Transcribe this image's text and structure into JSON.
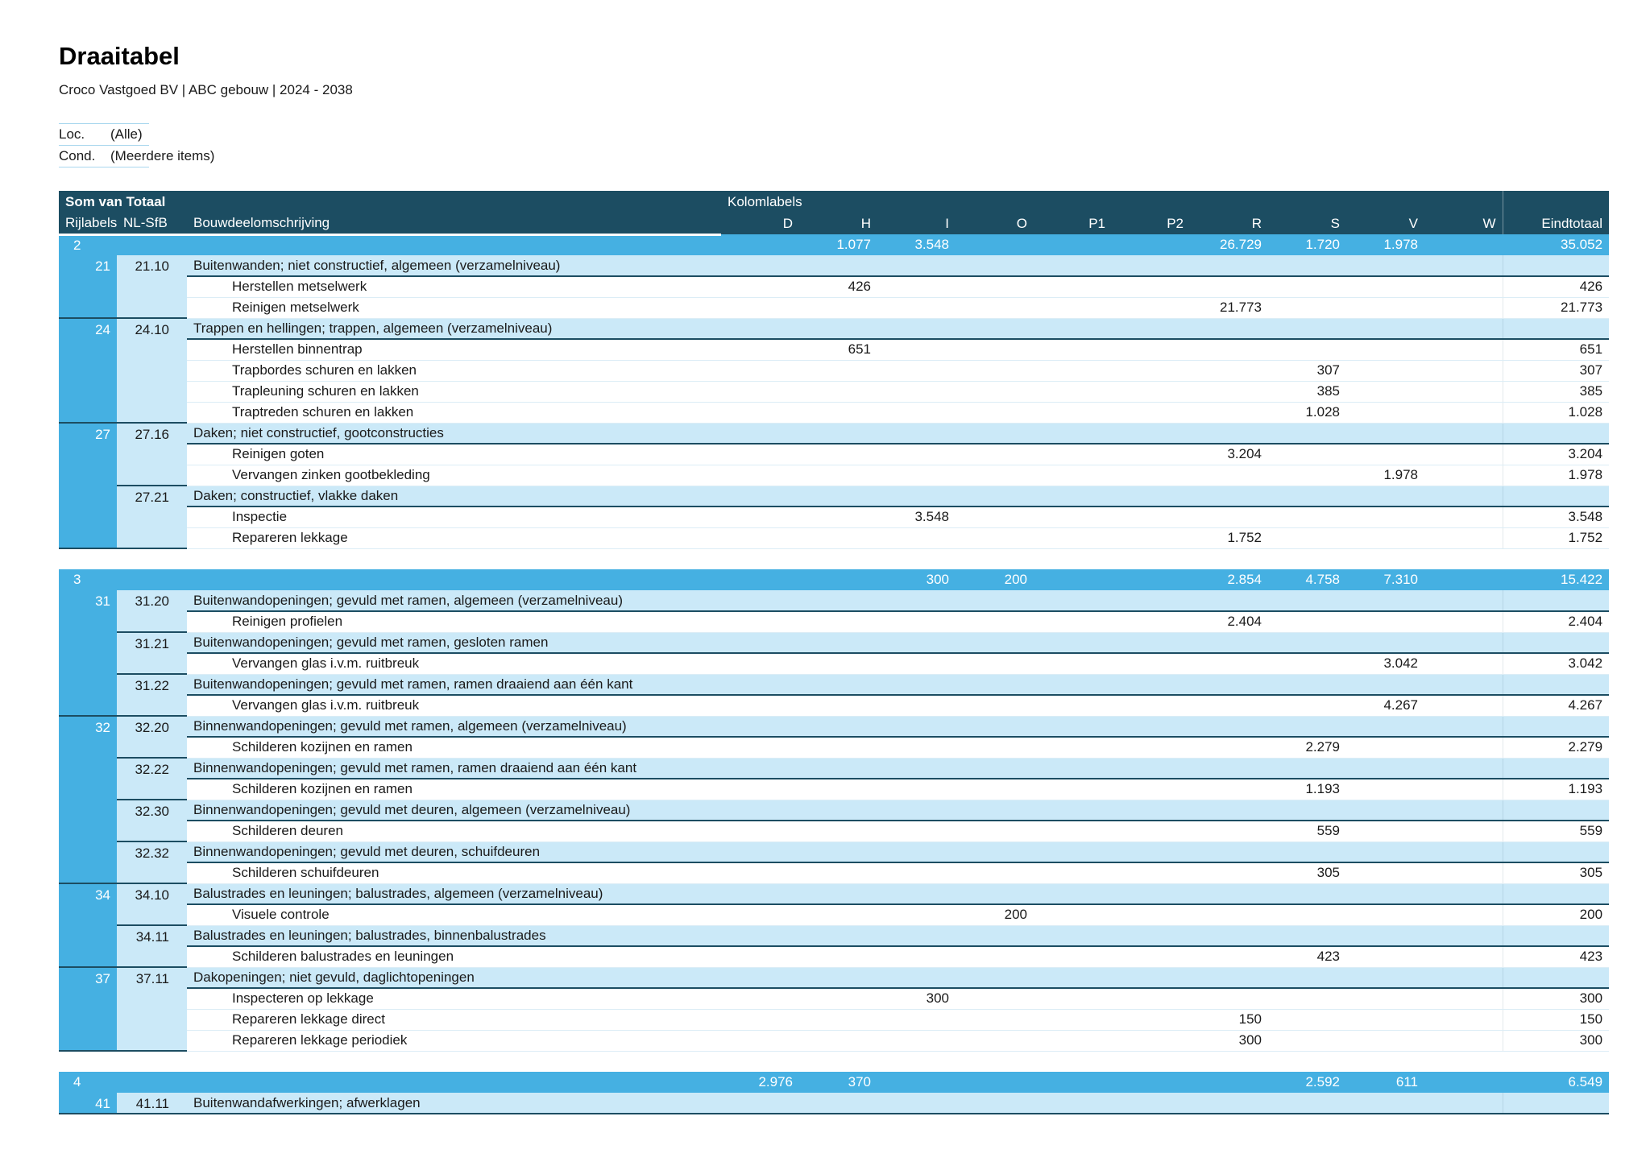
{
  "page": {
    "title": "Draaitabel",
    "subtitle": "Croco Vastgoed BV | ABC gebouw | 2024 - 2038"
  },
  "filters": [
    {
      "label": "Loc.",
      "value": "(Alle)"
    },
    {
      "label": "Cond.",
      "value": "(Meerdere items)"
    }
  ],
  "colors": {
    "header_dark": "#1C4D62",
    "group_blue": "#45B0E2",
    "light_blue": "#CBE9F8"
  },
  "table": {
    "measure_label": "Som van Totaal",
    "kolomlabels_label": "Kolomlabels",
    "row_headers": [
      "Rijlabels",
      "NL-SfB",
      "Bouwdeelomschrijving"
    ],
    "value_columns": [
      "D",
      "H",
      "I",
      "O",
      "P1",
      "P2",
      "R",
      "S",
      "V",
      "W"
    ],
    "grand_total_column": "Eindtotaal",
    "sections": [
      {
        "group_label": "2",
        "group_values": {
          "H": "1.077",
          "I": "3.548",
          "R": "26.729",
          "S": "1.720",
          "V": "1.978",
          "Eindtotaal": "35.052"
        },
        "groups": [
          {
            "rijlabel": "21",
            "codes": [
              {
                "code": "21.10",
                "description": "Buitenwanden; niet constructief, algemeen (verzamelniveau)",
                "rows": [
                  {
                    "label": "Herstellen metselwerk",
                    "values": {
                      "H": "426",
                      "Eindtotaal": "426"
                    }
                  },
                  {
                    "label": "Reinigen metselwerk",
                    "values": {
                      "R": "21.773",
                      "Eindtotaal": "21.773"
                    }
                  }
                ]
              }
            ]
          },
          {
            "rijlabel": "24",
            "codes": [
              {
                "code": "24.10",
                "description": "Trappen en hellingen; trappen, algemeen (verzamelniveau)",
                "rows": [
                  {
                    "label": "Herstellen binnentrap",
                    "values": {
                      "H": "651",
                      "Eindtotaal": "651"
                    }
                  },
                  {
                    "label": "Trapbordes schuren en lakken",
                    "values": {
                      "S": "307",
                      "Eindtotaal": "307"
                    }
                  },
                  {
                    "label": "Trapleuning schuren en lakken",
                    "values": {
                      "S": "385",
                      "Eindtotaal": "385"
                    }
                  },
                  {
                    "label": "Traptreden schuren en lakken",
                    "values": {
                      "S": "1.028",
                      "Eindtotaal": "1.028"
                    }
                  }
                ]
              }
            ]
          },
          {
            "rijlabel": "27",
            "codes": [
              {
                "code": "27.16",
                "description": "Daken; niet constructief, gootconstructies",
                "rows": [
                  {
                    "label": "Reinigen goten",
                    "values": {
                      "R": "3.204",
                      "Eindtotaal": "3.204"
                    }
                  },
                  {
                    "label": "Vervangen zinken gootbekleding",
                    "values": {
                      "V": "1.978",
                      "Eindtotaal": "1.978"
                    }
                  }
                ]
              },
              {
                "code": "27.21",
                "description": "Daken; constructief, vlakke daken",
                "rows": [
                  {
                    "label": "Inspectie",
                    "values": {
                      "I": "3.548",
                      "Eindtotaal": "3.548"
                    }
                  },
                  {
                    "label": "Repareren lekkage",
                    "values": {
                      "R": "1.752",
                      "Eindtotaal": "1.752"
                    }
                  }
                ]
              }
            ]
          }
        ]
      },
      {
        "group_label": "3",
        "group_values": {
          "I": "300",
          "O": "200",
          "R": "2.854",
          "S": "4.758",
          "V": "7.310",
          "Eindtotaal": "15.422"
        },
        "groups": [
          {
            "rijlabel": "31",
            "codes": [
              {
                "code": "31.20",
                "description": "Buitenwandopeningen; gevuld met ramen, algemeen (verzamelniveau)",
                "rows": [
                  {
                    "label": "Reinigen profielen",
                    "values": {
                      "R": "2.404",
                      "Eindtotaal": "2.404"
                    }
                  }
                ]
              },
              {
                "code": "31.21",
                "description": "Buitenwandopeningen; gevuld met ramen, gesloten ramen",
                "rows": [
                  {
                    "label": "Vervangen glas i.v.m. ruitbreuk",
                    "values": {
                      "V": "3.042",
                      "Eindtotaal": "3.042"
                    }
                  }
                ]
              },
              {
                "code": "31.22",
                "description": "Buitenwandopeningen; gevuld met ramen, ramen draaiend aan één kant",
                "rows": [
                  {
                    "label": "Vervangen glas i.v.m. ruitbreuk",
                    "values": {
                      "V": "4.267",
                      "Eindtotaal": "4.267"
                    }
                  }
                ]
              }
            ]
          },
          {
            "rijlabel": "32",
            "codes": [
              {
                "code": "32.20",
                "description": "Binnenwandopeningen; gevuld met ramen, algemeen (verzamelniveau)",
                "rows": [
                  {
                    "label": "Schilderen kozijnen en ramen",
                    "values": {
                      "S": "2.279",
                      "Eindtotaal": "2.279"
                    }
                  }
                ]
              },
              {
                "code": "32.22",
                "description": "Binnenwandopeningen; gevuld met ramen, ramen draaiend aan één kant",
                "rows": [
                  {
                    "label": "Schilderen kozijnen en ramen",
                    "values": {
                      "S": "1.193",
                      "Eindtotaal": "1.193"
                    }
                  }
                ]
              },
              {
                "code": "32.30",
                "description": "Binnenwandopeningen; gevuld met deuren, algemeen (verzamelniveau)",
                "rows": [
                  {
                    "label": "Schilderen deuren",
                    "values": {
                      "S": "559",
                      "Eindtotaal": "559"
                    }
                  }
                ]
              },
              {
                "code": "32.32",
                "description": "Binnenwandopeningen; gevuld met deuren, schuifdeuren",
                "rows": [
                  {
                    "label": "Schilderen schuifdeuren",
                    "values": {
                      "S": "305",
                      "Eindtotaal": "305"
                    }
                  }
                ]
              }
            ]
          },
          {
            "rijlabel": "34",
            "codes": [
              {
                "code": "34.10",
                "description": "Balustrades en leuningen; balustrades, algemeen (verzamelniveau)",
                "rows": [
                  {
                    "label": "Visuele controle",
                    "values": {
                      "O": "200",
                      "Eindtotaal": "200"
                    }
                  }
                ]
              },
              {
                "code": "34.11",
                "description": "Balustrades en leuningen; balustrades, binnenbalustrades",
                "rows": [
                  {
                    "label": "Schilderen balustrades en leuningen",
                    "values": {
                      "S": "423",
                      "Eindtotaal": "423"
                    }
                  }
                ]
              }
            ]
          },
          {
            "rijlabel": "37",
            "codes": [
              {
                "code": "37.11",
                "description": "Dakopeningen; niet gevuld, daglichtopeningen",
                "rows": [
                  {
                    "label": "Inspecteren op lekkage",
                    "values": {
                      "I": "300",
                      "Eindtotaal": "300"
                    }
                  },
                  {
                    "label": "Repareren lekkage direct",
                    "values": {
                      "R": "150",
                      "Eindtotaal": "150"
                    }
                  },
                  {
                    "label": "Repareren lekkage periodiek",
                    "values": {
                      "R": "300",
                      "Eindtotaal": "300"
                    }
                  }
                ]
              }
            ]
          }
        ]
      },
      {
        "group_label": "4",
        "group_values": {
          "D": "2.976",
          "H": "370",
          "S": "2.592",
          "V": "611",
          "Eindtotaal": "6.549"
        },
        "groups": [
          {
            "rijlabel": "41",
            "codes": [
              {
                "code": "41.11",
                "description": "Buitenwandafwerkingen; afwerklagen",
                "rows": []
              }
            ]
          }
        ]
      }
    ]
  }
}
